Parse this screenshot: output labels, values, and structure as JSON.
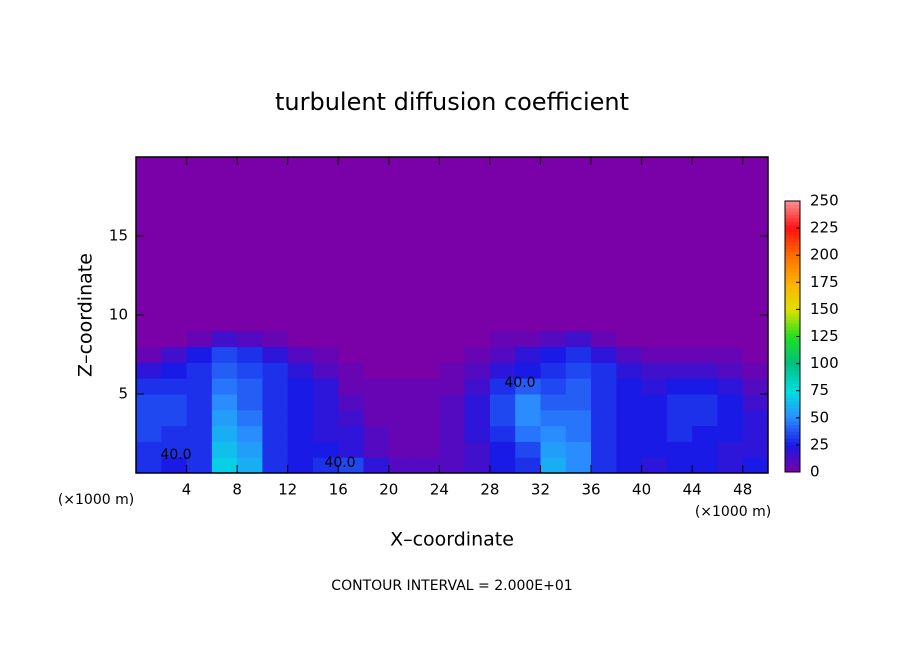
{
  "chart_data": {
    "type": "heatmap",
    "title": "turbulent diffusion coefficient",
    "x_label": "X–coordinate",
    "y_label": "Z–coordinate",
    "x_unit": "(×1000 m)",
    "y_unit": "(×1000 m)",
    "footer": "CONTOUR INTERVAL = 2.000E+01",
    "contour_labels": [
      "40.0",
      "40.0",
      "40.0"
    ],
    "xlim": [
      0,
      50
    ],
    "ylim": [
      0,
      20
    ],
    "xticks": [
      4,
      8,
      12,
      16,
      20,
      24,
      28,
      32,
      36,
      40,
      44,
      48
    ],
    "yticks": [
      5,
      10,
      15
    ],
    "zlim": [
      0,
      250
    ],
    "zticks": [
      0,
      25,
      50,
      75,
      100,
      125,
      150,
      175,
      200,
      225,
      250
    ],
    "colorscale": [
      "#7a00a8",
      "#1a1ae6",
      "#2a8cff",
      "#00e0e0",
      "#00c080",
      "#20e020",
      "#e0e000",
      "#ffb000",
      "#ff7000",
      "#ff1010",
      "#ff9090"
    ],
    "x": [
      1,
      3,
      5,
      7,
      9,
      11,
      13,
      15,
      17,
      19,
      21,
      23,
      25,
      27,
      29,
      31,
      33,
      35,
      37,
      39,
      41,
      43,
      45,
      47,
      49
    ],
    "y": [
      0.5,
      1.5,
      2.5,
      3.5,
      4.5,
      5.5,
      6.5,
      7.5,
      8.5,
      9.5,
      10.5,
      11.5,
      12.5,
      13.5,
      14.5,
      15.5,
      16.5,
      17.5,
      18.5,
      19.5
    ],
    "z": [
      [
        30,
        25,
        30,
        70,
        60,
        30,
        25,
        30,
        35,
        20,
        10,
        10,
        10,
        15,
        25,
        30,
        60,
        50,
        30,
        25,
        20,
        25,
        25,
        20,
        25
      ],
      [
        30,
        30,
        30,
        65,
        55,
        30,
        25,
        25,
        20,
        10,
        5,
        5,
        10,
        15,
        25,
        35,
        55,
        50,
        30,
        25,
        25,
        25,
        25,
        20,
        20
      ],
      [
        35,
        30,
        30,
        60,
        50,
        30,
        25,
        20,
        20,
        10,
        5,
        5,
        10,
        20,
        30,
        45,
        50,
        45,
        30,
        25,
        25,
        30,
        25,
        25,
        20
      ],
      [
        35,
        35,
        30,
        55,
        45,
        30,
        25,
        20,
        15,
        5,
        5,
        5,
        10,
        20,
        35,
        50,
        45,
        45,
        30,
        25,
        25,
        30,
        30,
        25,
        20
      ],
      [
        35,
        35,
        30,
        50,
        40,
        30,
        25,
        20,
        10,
        5,
        5,
        5,
        10,
        20,
        35,
        50,
        40,
        40,
        30,
        25,
        25,
        30,
        30,
        25,
        15
      ],
      [
        30,
        30,
        30,
        45,
        40,
        30,
        25,
        20,
        5,
        5,
        5,
        5,
        5,
        15,
        30,
        40,
        35,
        40,
        30,
        25,
        20,
        25,
        25,
        20,
        10
      ],
      [
        20,
        25,
        30,
        40,
        35,
        30,
        20,
        10,
        5,
        0,
        0,
        0,
        5,
        10,
        20,
        25,
        30,
        35,
        30,
        20,
        15,
        15,
        15,
        10,
        5
      ],
      [
        5,
        15,
        25,
        35,
        30,
        20,
        10,
        5,
        0,
        0,
        0,
        0,
        0,
        5,
        10,
        20,
        25,
        30,
        20,
        10,
        5,
        5,
        5,
        5,
        0
      ],
      [
        0,
        0,
        5,
        15,
        10,
        5,
        0,
        0,
        0,
        0,
        0,
        0,
        0,
        0,
        5,
        5,
        10,
        15,
        5,
        0,
        0,
        0,
        0,
        0,
        0
      ],
      [
        0,
        0,
        0,
        0,
        0,
        0,
        0,
        0,
        0,
        0,
        0,
        0,
        0,
        0,
        0,
        0,
        0,
        0,
        0,
        0,
        0,
        0,
        0,
        0,
        0
      ],
      [
        0,
        0,
        0,
        0,
        0,
        0,
        0,
        0,
        0,
        0,
        0,
        0,
        0,
        0,
        0,
        0,
        0,
        0,
        0,
        0,
        0,
        0,
        0,
        0,
        0
      ],
      [
        0,
        0,
        0,
        0,
        0,
        0,
        0,
        0,
        0,
        0,
        0,
        0,
        0,
        0,
        0,
        0,
        0,
        0,
        0,
        0,
        0,
        0,
        0,
        0,
        0
      ],
      [
        0,
        0,
        0,
        0,
        0,
        0,
        0,
        0,
        0,
        0,
        0,
        0,
        0,
        0,
        0,
        0,
        0,
        0,
        0,
        0,
        0,
        0,
        0,
        0,
        0
      ],
      [
        0,
        0,
        0,
        0,
        0,
        0,
        0,
        0,
        0,
        0,
        0,
        0,
        0,
        0,
        0,
        0,
        0,
        0,
        0,
        0,
        0,
        0,
        0,
        0,
        0
      ],
      [
        0,
        0,
        0,
        0,
        0,
        0,
        0,
        0,
        0,
        0,
        0,
        0,
        0,
        0,
        0,
        0,
        0,
        0,
        0,
        0,
        0,
        0,
        0,
        0,
        0
      ],
      [
        0,
        0,
        0,
        0,
        0,
        0,
        0,
        0,
        0,
        0,
        0,
        0,
        0,
        0,
        0,
        0,
        0,
        0,
        0,
        0,
        0,
        0,
        0,
        0,
        0
      ],
      [
        0,
        0,
        0,
        0,
        0,
        0,
        0,
        0,
        0,
        0,
        0,
        0,
        0,
        0,
        0,
        0,
        0,
        0,
        0,
        0,
        0,
        0,
        0,
        0,
        0
      ],
      [
        0,
        0,
        0,
        0,
        0,
        0,
        0,
        0,
        0,
        0,
        0,
        0,
        0,
        0,
        0,
        0,
        0,
        0,
        0,
        0,
        0,
        0,
        0,
        0,
        0
      ],
      [
        0,
        0,
        0,
        0,
        0,
        0,
        0,
        0,
        0,
        0,
        0,
        0,
        0,
        0,
        0,
        0,
        0,
        0,
        0,
        0,
        0,
        0,
        0,
        0,
        0
      ],
      [
        0,
        0,
        0,
        0,
        0,
        0,
        0,
        0,
        0,
        0,
        0,
        0,
        0,
        0,
        0,
        0,
        0,
        0,
        0,
        0,
        0,
        0,
        0,
        0,
        0
      ]
    ]
  }
}
